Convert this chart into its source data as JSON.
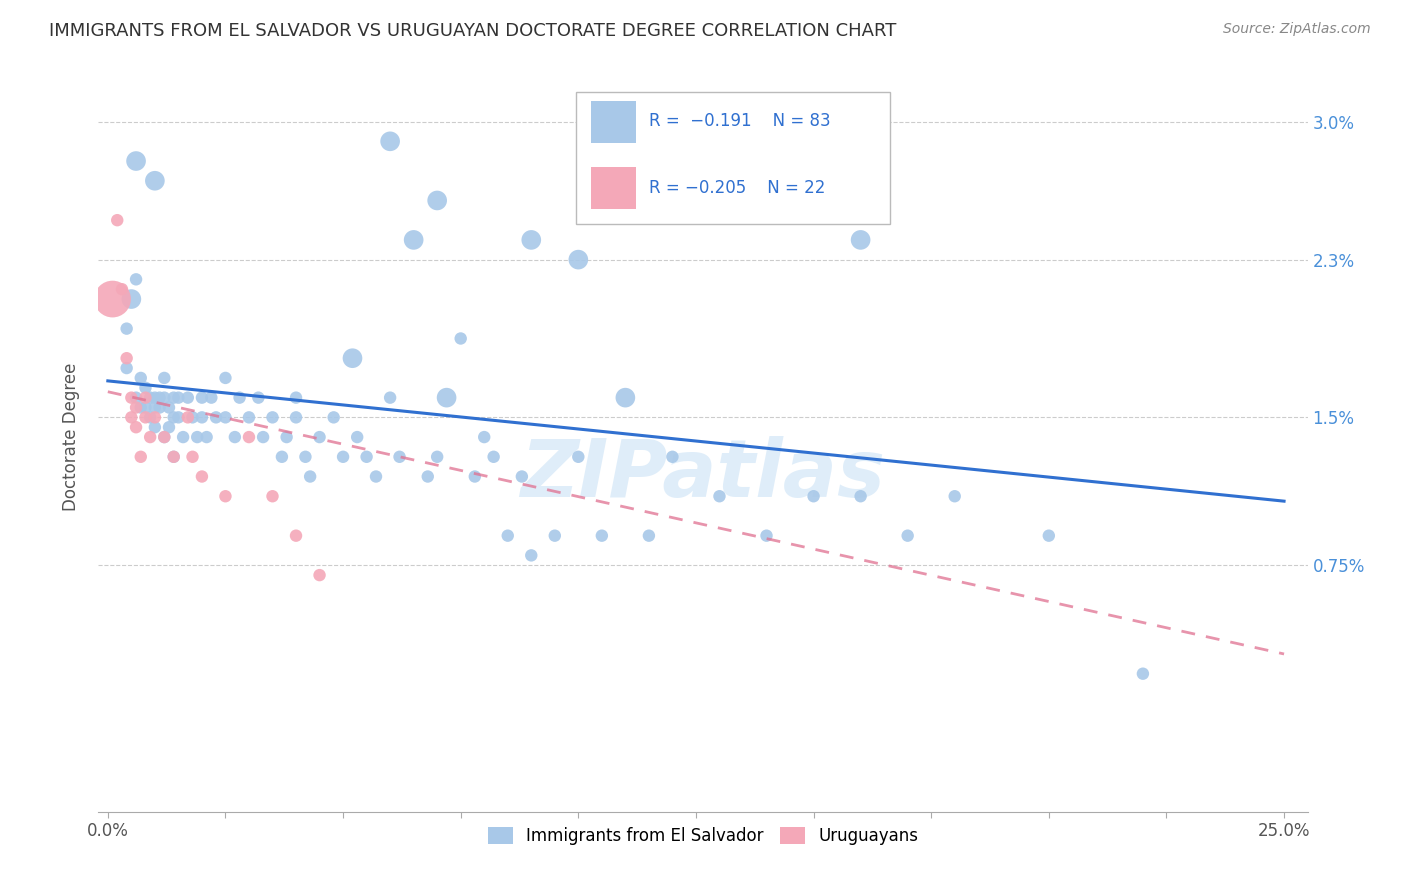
{
  "title": "IMMIGRANTS FROM EL SALVADOR VS URUGUAYAN DOCTORATE DEGREE CORRELATION CHART",
  "source": "Source: ZipAtlas.com",
  "ylabel": "Doctorate Degree",
  "yticks_labels": [
    "0.75%",
    "1.5%",
    "2.3%",
    "3.0%"
  ],
  "ytick_vals": [
    0.0075,
    0.015,
    0.023,
    0.03
  ],
  "xtick_vals": [
    0.0,
    0.025,
    0.05,
    0.075,
    0.1,
    0.125,
    0.15,
    0.175,
    0.2,
    0.225,
    0.25
  ],
  "xlim": [
    -0.002,
    0.255
  ],
  "ylim": [
    -0.005,
    0.033
  ],
  "legend_r1": "R =  −0.191",
  "legend_n1": "N = 83",
  "legend_r2": "R = −0.205",
  "legend_n2": "N = 22",
  "legend_label1": "Immigrants from El Salvador",
  "legend_label2": "Uruguayans",
  "blue_color": "#a8c8e8",
  "pink_color": "#f4a8b8",
  "blue_line_color": "#3070d0",
  "pink_line_color": "#e07090",
  "watermark": "ZIPatlas",
  "blue_scatter": [
    [
      0.004,
      0.0195
    ],
    [
      0.004,
      0.0175
    ],
    [
      0.006,
      0.022
    ],
    [
      0.006,
      0.016
    ],
    [
      0.007,
      0.0155
    ],
    [
      0.007,
      0.017
    ],
    [
      0.008,
      0.0165
    ],
    [
      0.008,
      0.0155
    ],
    [
      0.009,
      0.016
    ],
    [
      0.009,
      0.015
    ],
    [
      0.01,
      0.0155
    ],
    [
      0.01,
      0.0145
    ],
    [
      0.01,
      0.016
    ],
    [
      0.011,
      0.0155
    ],
    [
      0.011,
      0.016
    ],
    [
      0.012,
      0.017
    ],
    [
      0.012,
      0.016
    ],
    [
      0.012,
      0.014
    ],
    [
      0.013,
      0.0155
    ],
    [
      0.013,
      0.0145
    ],
    [
      0.014,
      0.016
    ],
    [
      0.014,
      0.015
    ],
    [
      0.014,
      0.013
    ],
    [
      0.015,
      0.016
    ],
    [
      0.015,
      0.015
    ],
    [
      0.016,
      0.014
    ],
    [
      0.017,
      0.016
    ],
    [
      0.018,
      0.015
    ],
    [
      0.019,
      0.014
    ],
    [
      0.02,
      0.016
    ],
    [
      0.02,
      0.015
    ],
    [
      0.021,
      0.014
    ],
    [
      0.022,
      0.016
    ],
    [
      0.023,
      0.015
    ],
    [
      0.025,
      0.017
    ],
    [
      0.025,
      0.015
    ],
    [
      0.027,
      0.014
    ],
    [
      0.028,
      0.016
    ],
    [
      0.03,
      0.015
    ],
    [
      0.032,
      0.016
    ],
    [
      0.033,
      0.014
    ],
    [
      0.035,
      0.015
    ],
    [
      0.037,
      0.013
    ],
    [
      0.038,
      0.014
    ],
    [
      0.04,
      0.016
    ],
    [
      0.04,
      0.015
    ],
    [
      0.042,
      0.013
    ],
    [
      0.043,
      0.012
    ],
    [
      0.045,
      0.014
    ],
    [
      0.048,
      0.015
    ],
    [
      0.05,
      0.013
    ],
    [
      0.053,
      0.014
    ],
    [
      0.055,
      0.013
    ],
    [
      0.057,
      0.012
    ],
    [
      0.06,
      0.016
    ],
    [
      0.062,
      0.013
    ],
    [
      0.068,
      0.012
    ],
    [
      0.07,
      0.013
    ],
    [
      0.075,
      0.019
    ],
    [
      0.078,
      0.012
    ],
    [
      0.08,
      0.014
    ],
    [
      0.082,
      0.013
    ],
    [
      0.085,
      0.009
    ],
    [
      0.088,
      0.012
    ],
    [
      0.09,
      0.008
    ],
    [
      0.095,
      0.009
    ],
    [
      0.1,
      0.013
    ],
    [
      0.105,
      0.009
    ],
    [
      0.115,
      0.009
    ],
    [
      0.12,
      0.013
    ],
    [
      0.13,
      0.011
    ],
    [
      0.14,
      0.009
    ],
    [
      0.15,
      0.011
    ],
    [
      0.16,
      0.011
    ],
    [
      0.17,
      0.009
    ],
    [
      0.18,
      0.011
    ],
    [
      0.2,
      0.009
    ],
    [
      0.22,
      0.002
    ]
  ],
  "blue_scatter_large": [
    [
      0.005,
      0.021
    ],
    [
      0.006,
      0.028
    ],
    [
      0.01,
      0.027
    ],
    [
      0.052,
      0.018
    ],
    [
      0.06,
      0.029
    ],
    [
      0.065,
      0.024
    ],
    [
      0.07,
      0.026
    ],
    [
      0.072,
      0.016
    ],
    [
      0.09,
      0.024
    ],
    [
      0.1,
      0.023
    ],
    [
      0.11,
      0.016
    ],
    [
      0.13,
      0.026
    ],
    [
      0.16,
      0.024
    ]
  ],
  "pink_scatter": [
    [
      0.002,
      0.025
    ],
    [
      0.003,
      0.0215
    ],
    [
      0.004,
      0.018
    ],
    [
      0.005,
      0.016
    ],
    [
      0.005,
      0.015
    ],
    [
      0.006,
      0.0155
    ],
    [
      0.006,
      0.0145
    ],
    [
      0.007,
      0.013
    ],
    [
      0.008,
      0.016
    ],
    [
      0.008,
      0.015
    ],
    [
      0.009,
      0.014
    ],
    [
      0.01,
      0.015
    ],
    [
      0.012,
      0.014
    ],
    [
      0.014,
      0.013
    ],
    [
      0.017,
      0.015
    ],
    [
      0.018,
      0.013
    ],
    [
      0.02,
      0.012
    ],
    [
      0.025,
      0.011
    ],
    [
      0.03,
      0.014
    ],
    [
      0.035,
      0.011
    ],
    [
      0.04,
      0.009
    ],
    [
      0.045,
      0.007
    ]
  ],
  "pink_large": [
    [
      0.001,
      0.021
    ]
  ],
  "blue_trendline": [
    [
      0.0,
      0.01685
    ],
    [
      0.25,
      0.01075
    ]
  ],
  "pink_trendline": [
    [
      0.0,
      0.0163
    ],
    [
      0.25,
      0.003
    ]
  ]
}
